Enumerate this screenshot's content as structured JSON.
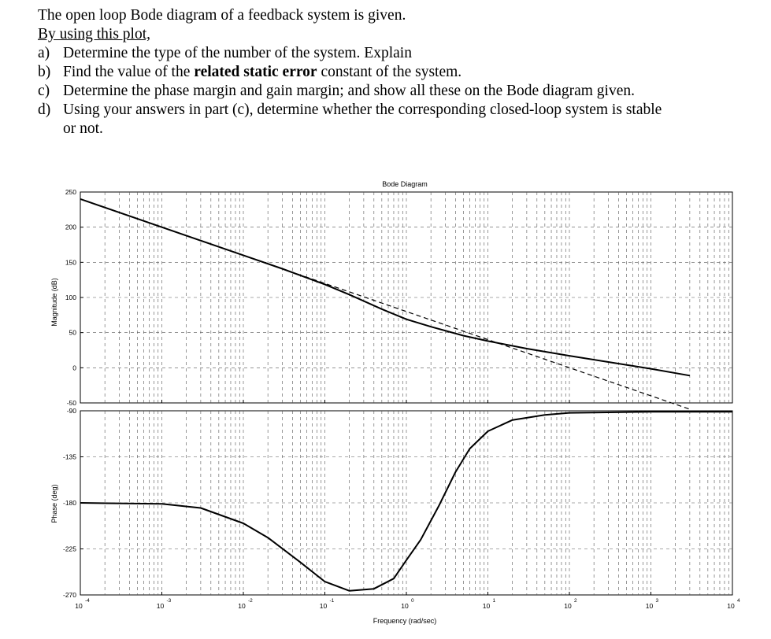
{
  "question": {
    "intro": "The open loop Bode diagram of a feedback system is given.",
    "by_using": "By using this plot,",
    "items": [
      {
        "label": "a)",
        "pre": "Determine the type of the number of the system. Explain",
        "bold": "",
        "post": ""
      },
      {
        "label": "b)",
        "pre": "Find the value of the ",
        "bold": "related static error",
        "post": " constant of the system."
      },
      {
        "label": "c)",
        "pre": "Determine the phase margin and gain margin; and show all these on the Bode diagram given.",
        "bold": "",
        "post": ""
      },
      {
        "label": "d)",
        "pre": "Using your answers in part (c), determine whether the corresponding closed-loop system is stable",
        "bold": "",
        "post": ""
      }
    ],
    "continuation": "or not."
  },
  "chart_data": {
    "type": "line",
    "title": "Bode Diagram",
    "xlabel": "Frequency (rad/sec)",
    "xscale": "log",
    "xlim": [
      0.0001,
      10000
    ],
    "x_ticks": [
      {
        "base": "10",
        "exp": "-4"
      },
      {
        "base": "10",
        "exp": "-3"
      },
      {
        "base": "10",
        "exp": "-2"
      },
      {
        "base": "10",
        "exp": "-1"
      },
      {
        "base": "10",
        "exp": "0"
      },
      {
        "base": "10",
        "exp": "1"
      },
      {
        "base": "10",
        "exp": "2"
      },
      {
        "base": "10",
        "exp": "3"
      },
      {
        "base": "10",
        "exp": "4"
      }
    ],
    "grid": true,
    "magnitude": {
      "ylabel": "Magnitude (dB)",
      "ylim": [
        -50,
        250
      ],
      "yticks": [
        "250",
        "200",
        "150",
        "100",
        "50",
        "0",
        "-50"
      ],
      "curve": {
        "x": [
          0.0001,
          0.001,
          0.01,
          0.03,
          0.1,
          0.2,
          0.5,
          1,
          2,
          5,
          10,
          30,
          100,
          300,
          1000,
          3000
        ],
        "y": [
          240,
          200,
          160,
          140.9,
          118.6,
          104,
          83.4,
          69,
          58.4,
          45.7,
          38,
          27.2,
          17,
          8.2,
          -1.4,
          -11.2
        ]
      },
      "asymptote": {
        "x": [
          0.03,
          3000
        ],
        "y": [
          140.9,
          -59
        ]
      }
    },
    "phase": {
      "ylabel": "Phase (deg)",
      "ylim": [
        -270,
        -90
      ],
      "yticks": [
        "-90",
        "-135",
        "-180",
        "-225",
        "-270"
      ],
      "curve": {
        "x": [
          0.0001,
          0.001,
          0.003,
          0.01,
          0.02,
          0.05,
          0.1,
          0.2,
          0.4,
          0.7,
          1,
          1.5,
          2.5,
          4,
          6,
          10,
          20,
          50,
          100,
          1000,
          10000
        ],
        "y": [
          -180,
          -181,
          -185,
          -200,
          -214,
          -238,
          -257,
          -266,
          -264,
          -254,
          -236,
          -216,
          -183,
          -150,
          -127,
          -110,
          -99,
          -94,
          -92,
          -91,
          -91
        ]
      }
    }
  }
}
